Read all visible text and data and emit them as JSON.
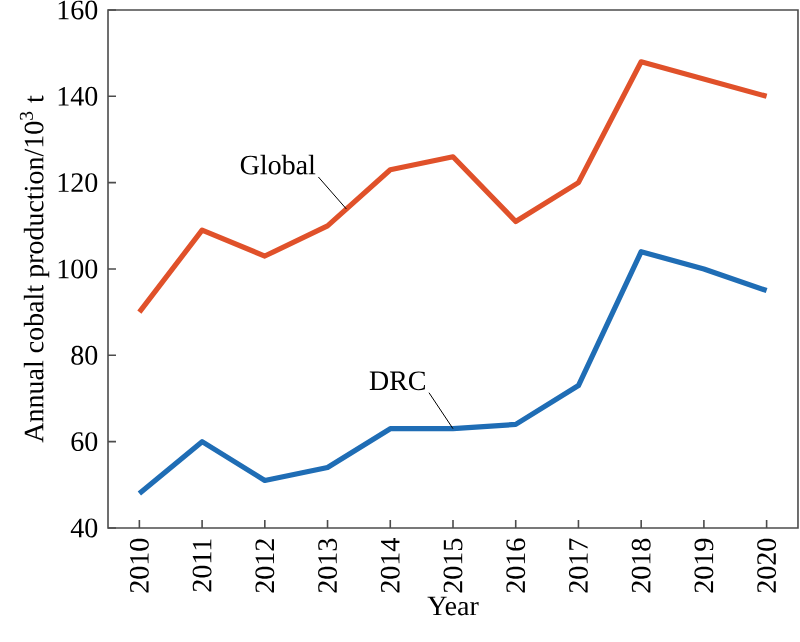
{
  "chart_data": {
    "type": "line",
    "xlabel": "Year",
    "ylabel": "Annual cobalt production/10$^{3}$ t",
    "x": [
      2010,
      2011,
      2012,
      2013,
      2014,
      2015,
      2016,
      2017,
      2018,
      2019,
      2020
    ],
    "series": [
      {
        "name": "Global",
        "color": "#e0512a",
        "values": [
          90,
          109,
          103,
          110,
          123,
          126,
          111,
          120,
          148,
          144,
          140
        ]
      },
      {
        "name": "DRC",
        "color": "#1f6db5",
        "values": [
          48,
          60,
          51,
          54,
          63,
          63,
          64,
          73,
          104,
          100,
          95
        ]
      }
    ],
    "xlim": [
      2009.5,
      2020.5
    ],
    "xticks": [
      2010,
      2011,
      2012,
      2013,
      2014,
      2015,
      2016,
      2017,
      2018,
      2019,
      2020
    ],
    "ylim": [
      40,
      160
    ],
    "yticks": [
      40,
      60,
      80,
      100,
      120,
      140,
      160
    ],
    "grid": false,
    "legend": false,
    "marker": "none",
    "line_style": "solid"
  }
}
